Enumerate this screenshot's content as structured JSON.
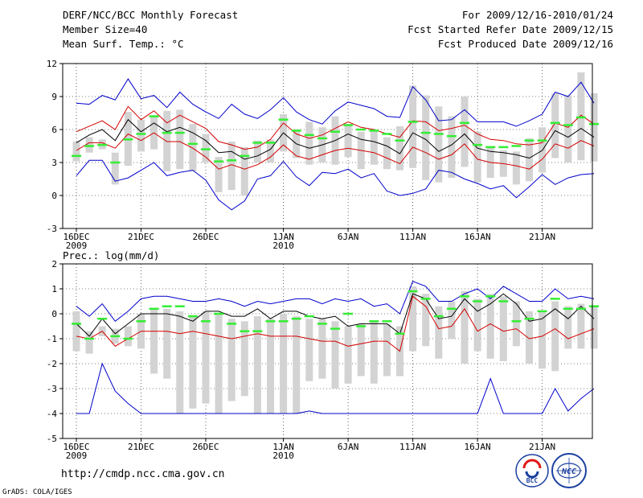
{
  "header": {
    "title": "DERF/NCC/BCC Monthly Forecast",
    "member_size": "Member Size=40",
    "variable": "Mean Surf. Temp.: °C",
    "period": "For 2009/12/16-2010/01/24",
    "start_date": "Fcst Started Refer Date 2009/12/15",
    "produced_date": "Fcst Produced Date 2009/12/16"
  },
  "footer": {
    "url": "http://cmdp.ncc.cma.gov.cn",
    "grads": "GrADS: COLA/IGES",
    "logo_bcc": "BCC",
    "logo_ncc": "NCC"
  },
  "colors": {
    "max_line": "#0000cc",
    "spread_line": "#d40000",
    "mean_line": "#000000",
    "box": "#d3d3d3",
    "median": "#33ee33"
  },
  "chart_data": [
    {
      "type": "line",
      "title": "Mean Surf. Temp.: °C",
      "ylabel": "°C",
      "ylim": [
        -3,
        12
      ],
      "yticks": [
        -3,
        0,
        3,
        6,
        9,
        12
      ],
      "grid": true,
      "xtick_labels": [
        {
          "day": 0,
          "label": "16DEC",
          "sub": "2009"
        },
        {
          "day": 5,
          "label": "21DEC",
          "sub": ""
        },
        {
          "day": 10,
          "label": "26DEC",
          "sub": ""
        },
        {
          "day": 16,
          "label": "1JAN",
          "sub": "2010"
        },
        {
          "day": 21,
          "label": "6JAN",
          "sub": ""
        },
        {
          "day": 26,
          "label": "11JAN",
          "sub": ""
        },
        {
          "day": 31,
          "label": "16JAN",
          "sub": ""
        },
        {
          "day": 36,
          "label": "21JAN",
          "sub": ""
        }
      ],
      "series": [
        {
          "name": "max",
          "values": [
            8.4,
            8.3,
            9.1,
            8.7,
            10.6,
            8.8,
            9.1,
            8.0,
            9.4,
            8.3,
            7.6,
            7.0,
            8.3,
            7.4,
            7.0,
            7.8,
            8.9,
            7.6,
            6.9,
            6.5,
            7.7,
            8.5,
            8.2,
            7.9,
            7.2,
            7.1,
            9.9,
            8.7,
            6.8,
            6.9,
            7.8,
            6.7,
            6.7,
            6.7,
            6.3,
            6.8,
            7.4,
            9.4,
            9.0,
            10.3,
            8.4
          ]
        },
        {
          "name": "upper",
          "values": [
            5.8,
            6.3,
            6.8,
            6.0,
            8.1,
            6.9,
            7.7,
            6.6,
            7.3,
            6.7,
            6.1,
            4.9,
            4.6,
            4.2,
            4.4,
            5.1,
            6.6,
            5.6,
            5.2,
            5.5,
            6.1,
            6.7,
            6.2,
            6.0,
            5.6,
            5.3,
            6.8,
            6.7,
            5.9,
            6.1,
            6.4,
            5.6,
            5.1,
            5.0,
            4.7,
            4.6,
            4.8,
            6.6,
            6.2,
            7.3,
            6.5
          ]
        },
        {
          "name": "mean",
          "values": [
            4.8,
            5.5,
            6.0,
            5.0,
            6.9,
            5.8,
            6.6,
            5.8,
            6.2,
            5.7,
            5.0,
            3.9,
            4.0,
            3.3,
            3.6,
            4.2,
            5.7,
            4.7,
            4.3,
            4.6,
            5.0,
            5.6,
            5.1,
            4.9,
            4.5,
            3.8,
            5.7,
            5.1,
            4.0,
            4.6,
            5.6,
            4.3,
            4.0,
            3.9,
            3.7,
            3.4,
            4.1,
            5.9,
            5.3,
            6.1,
            5.3
          ]
        },
        {
          "name": "lower",
          "values": [
            4.1,
            4.8,
            4.8,
            4.3,
            5.6,
            5.0,
            5.7,
            4.9,
            4.9,
            4.3,
            3.5,
            2.4,
            2.8,
            2.4,
            2.8,
            3.5,
            4.6,
            3.6,
            3.3,
            3.7,
            4.1,
            4.3,
            4.1,
            3.9,
            3.4,
            2.9,
            4.4,
            3.9,
            3.3,
            3.7,
            4.7,
            3.3,
            3.0,
            2.9,
            2.7,
            2.4,
            3.3,
            4.7,
            4.3,
            5.0,
            4.5
          ]
        },
        {
          "name": "min",
          "values": [
            1.8,
            3.2,
            3.2,
            1.3,
            1.6,
            2.3,
            3.0,
            1.8,
            2.1,
            2.3,
            1.4,
            -0.4,
            -1.3,
            -0.5,
            1.5,
            1.8,
            3.1,
            1.7,
            0.9,
            2.1,
            2.0,
            2.4,
            1.6,
            2.0,
            0.4,
            0.0,
            0.2,
            0.6,
            2.3,
            2.1,
            1.5,
            1.1,
            0.6,
            0.9,
            -0.2,
            0.8,
            1.9,
            1.0,
            1.6,
            1.9,
            2.0
          ]
        },
        {
          "name": "box_low",
          "values": [
            3.1,
            3.9,
            4.2,
            1.0,
            2.7,
            4.0,
            4.2,
            2.2,
            2.4,
            2.2,
            3.0,
            0.3,
            0.5,
            0.0,
            3.0,
            3.0,
            4.0,
            3.4,
            2.8,
            3.0,
            2.8,
            3.5,
            2.4,
            2.8,
            2.4,
            2.3,
            2.5,
            1.4,
            1.2,
            1.6,
            2.6,
            1.2,
            1.6,
            1.7,
            1.0,
            1.3,
            2.1,
            3.4,
            3.0,
            3.2,
            3.1
          ]
        },
        {
          "name": "box_high",
          "values": [
            4.9,
            5.3,
            5.1,
            3.9,
            7.6,
            6.9,
            7.3,
            7.7,
            7.8,
            6.5,
            5.6,
            3.5,
            4.9,
            4.4,
            5.0,
            5.1,
            7.4,
            6.0,
            6.7,
            6.2,
            7.2,
            6.5,
            5.8,
            6.0,
            5.3,
            6.3,
            10.0,
            9.1,
            8.1,
            7.2,
            9.0,
            5.8,
            4.4,
            4.1,
            4.0,
            5.2,
            6.2,
            9.3,
            9.1,
            11.2,
            9.3
          ]
        },
        {
          "name": "median",
          "values": [
            3.6,
            4.5,
            4.6,
            3.0,
            5.1,
            5.6,
            7.2,
            5.7,
            5.7,
            4.7,
            4.2,
            3.1,
            3.2,
            3.6,
            4.8,
            4.8,
            6.9,
            5.9,
            5.5,
            5.2,
            5.8,
            6.4,
            6.0,
            5.9,
            5.6,
            5.0,
            6.7,
            5.7,
            5.6,
            5.4,
            6.6,
            4.6,
            4.4,
            4.4,
            4.5,
            5.0,
            5.0,
            6.6,
            6.4,
            7.1,
            6.5
          ]
        }
      ]
    },
    {
      "type": "line",
      "title": "Prec.: log(mm/d)",
      "ylabel": "log(mm/d)",
      "ylim": [
        -5,
        2
      ],
      "yticks": [
        -5,
        -4,
        -3,
        -2,
        -1,
        0,
        1,
        2
      ],
      "grid": true,
      "xtick_labels": [
        {
          "day": 0,
          "label": "16DEC",
          "sub": "2009"
        },
        {
          "day": 5,
          "label": "21DEC",
          "sub": ""
        },
        {
          "day": 10,
          "label": "26DEC",
          "sub": ""
        },
        {
          "day": 16,
          "label": "1JAN",
          "sub": "2010"
        },
        {
          "day": 21,
          "label": "6JAN",
          "sub": ""
        },
        {
          "day": 26,
          "label": "11JAN",
          "sub": ""
        },
        {
          "day": 31,
          "label": "16JAN",
          "sub": ""
        },
        {
          "day": 36,
          "label": "21JAN",
          "sub": ""
        }
      ],
      "series": [
        {
          "name": "max",
          "values": [
            0.3,
            -0.1,
            0.4,
            -0.3,
            0.1,
            0.6,
            0.7,
            0.7,
            0.6,
            0.5,
            0.5,
            0.6,
            0.5,
            0.3,
            0.5,
            0.4,
            0.5,
            0.6,
            0.6,
            0.4,
            0.6,
            0.5,
            0.6,
            0.3,
            0.4,
            0.0,
            1.3,
            1.1,
            0.5,
            0.5,
            0.8,
            1.0,
            0.6,
            1.1,
            0.8,
            0.5,
            0.5,
            1.0,
            0.6,
            0.7,
            0.6
          ]
        },
        {
          "name": "mean",
          "values": [
            -0.4,
            -0.9,
            -0.2,
            -0.8,
            -0.4,
            0.0,
            0.0,
            0.0,
            -0.1,
            -0.3,
            0.1,
            0.1,
            -0.1,
            -0.1,
            0.2,
            -0.2,
            0.1,
            0.1,
            -0.1,
            -0.2,
            -0.1,
            -0.5,
            -0.4,
            -0.4,
            -0.4,
            -0.8,
            0.8,
            0.6,
            -0.2,
            -0.1,
            0.6,
            0.1,
            0.4,
            0.8,
            0.4,
            -0.3,
            -0.2,
            0.2,
            -0.2,
            0.3,
            -0.2
          ]
        },
        {
          "name": "lower",
          "values": [
            -0.9,
            -1.0,
            -0.7,
            -1.3,
            -1.0,
            -0.7,
            -0.7,
            -0.7,
            -0.8,
            -0.7,
            -0.8,
            -0.9,
            -1.0,
            -0.9,
            -0.8,
            -0.9,
            -0.9,
            -0.9,
            -1.0,
            -1.1,
            -1.1,
            -1.3,
            -1.2,
            -1.1,
            -1.1,
            -1.5,
            0.7,
            0.3,
            -0.6,
            -0.5,
            0.2,
            -0.7,
            -0.4,
            -0.7,
            -0.6,
            -1.0,
            -0.9,
            -0.6,
            -1.0,
            -0.8,
            -0.6
          ]
        },
        {
          "name": "min",
          "values": [
            -4.0,
            -4.0,
            -2.0,
            -3.1,
            -3.6,
            -4.0,
            -4.0,
            -4.0,
            -4.0,
            -4.0,
            -4.0,
            -4.0,
            -4.0,
            -4.0,
            -4.0,
            -4.0,
            -4.0,
            -4.0,
            -3.9,
            -4.0,
            -4.0,
            -4.0,
            -4.0,
            -4.0,
            -4.0,
            -4.0,
            -4.0,
            -4.0,
            -4.0,
            -4.0,
            -4.0,
            -4.0,
            -2.6,
            -4.0,
            -4.0,
            -4.0,
            -4.0,
            -3.0,
            -3.9,
            -3.4,
            -3.0
          ]
        },
        {
          "name": "box_low",
          "values": [
            -1.5,
            -1.6,
            -0.9,
            -1.2,
            -1.3,
            -1.4,
            -2.4,
            -2.6,
            -4.0,
            -3.8,
            -3.6,
            -4.0,
            -3.5,
            -3.3,
            -4.0,
            -4.0,
            -4.0,
            -4.0,
            -2.7,
            -2.6,
            -3.0,
            -2.8,
            -2.5,
            -2.8,
            -2.5,
            -2.5,
            -1.5,
            -1.3,
            -1.8,
            -1.0,
            -2.0,
            -1.5,
            -1.8,
            -1.9,
            -1.3,
            -2.0,
            -2.2,
            -2.3,
            -1.4,
            -1.4,
            -1.4
          ]
        },
        {
          "name": "box_high",
          "values": [
            0.1,
            -0.7,
            -0.5,
            -0.6,
            -0.5,
            0.0,
            0.2,
            0.2,
            0.1,
            -0.1,
            0.1,
            0.0,
            -0.2,
            -0.3,
            -0.1,
            -0.2,
            0.0,
            -0.1,
            -0.2,
            -0.2,
            -0.3,
            -0.5,
            -0.4,
            -0.3,
            -0.4,
            -0.5,
            1.1,
            0.8,
            0.3,
            0.5,
            0.9,
            0.6,
            0.8,
            0.7,
            0.5,
            0.1,
            0.1,
            0.5,
            0.3,
            0.4,
            0.3
          ]
        },
        {
          "name": "median",
          "values": [
            -0.4,
            -1.0,
            -0.2,
            -0.9,
            -1.0,
            -0.3,
            0.2,
            0.3,
            0.3,
            -0.1,
            -0.3,
            0.0,
            -0.4,
            -0.7,
            -0.7,
            -0.3,
            -0.3,
            -0.2,
            -0.1,
            -0.4,
            -0.6,
            0.0,
            -0.5,
            -0.3,
            -0.3,
            -0.8,
            0.9,
            0.6,
            -0.1,
            0.2,
            0.7,
            0.5,
            0.7,
            0.5,
            -0.3,
            -0.2,
            0.1,
            0.6,
            0.2,
            0.2,
            0.3
          ]
        }
      ]
    }
  ]
}
